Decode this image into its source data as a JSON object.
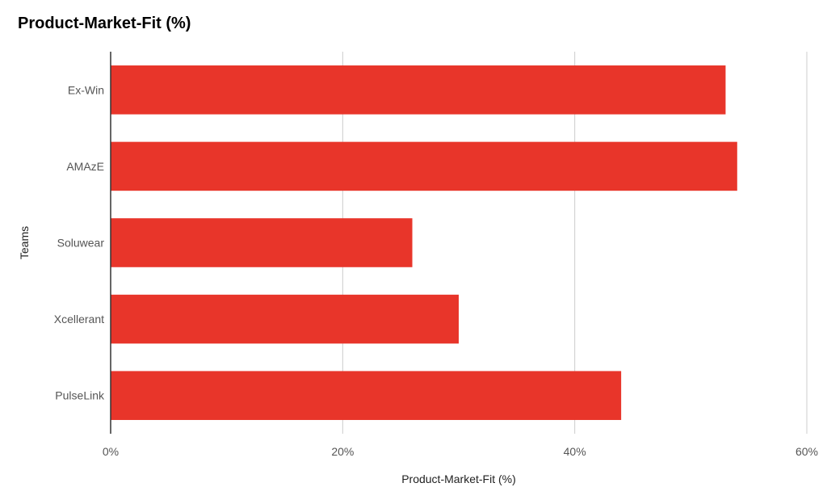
{
  "chart_data": {
    "type": "bar",
    "orientation": "horizontal",
    "title": "Product-Market-Fit (%)",
    "xlabel": "Product-Market-Fit (%)",
    "ylabel": "Teams",
    "categories": [
      "Ex-Win",
      "AMAzE",
      "Soluwear",
      "Xcellerant",
      "PulseLink"
    ],
    "values": [
      53,
      54,
      26,
      30,
      44
    ],
    "xlim": [
      0,
      60
    ],
    "xticks": [
      0,
      20,
      40,
      60
    ],
    "xtick_labels": [
      "0%",
      "20%",
      "40%",
      "60%"
    ],
    "grid": "vertical",
    "legend": "none",
    "bar_color": "#e8352a",
    "grid_color": "#cccccc",
    "axis_color": "#333333"
  }
}
